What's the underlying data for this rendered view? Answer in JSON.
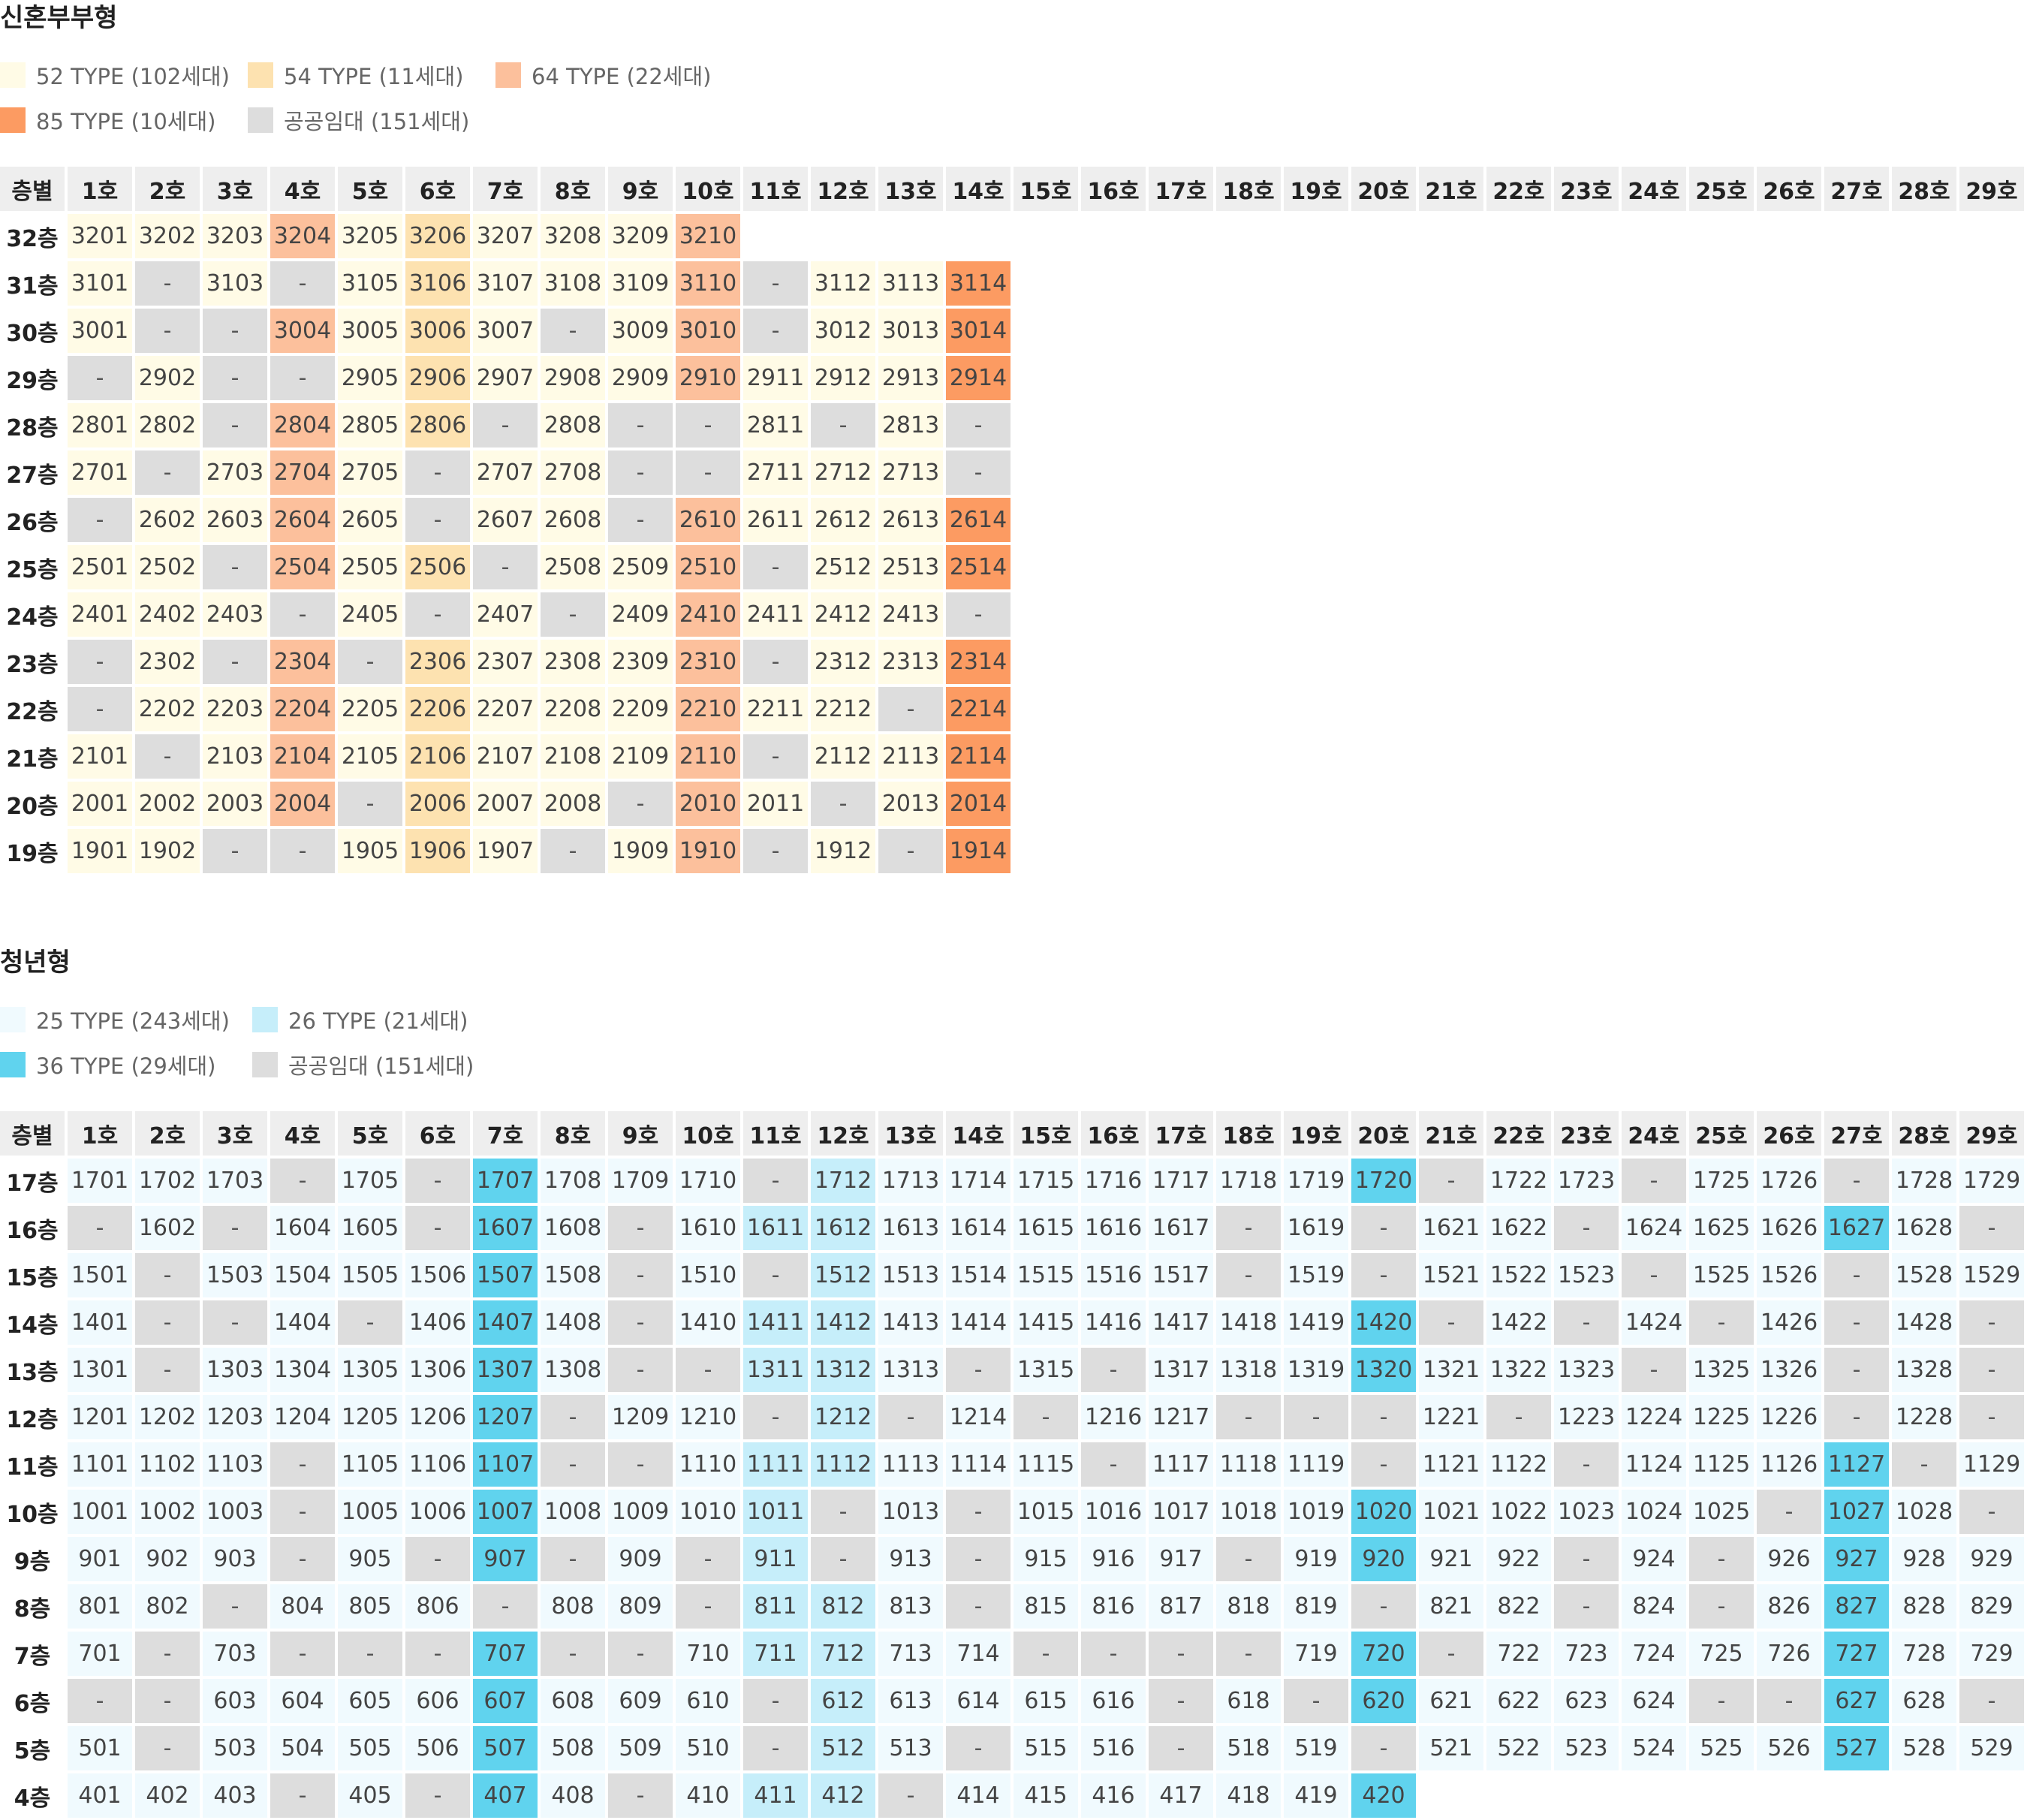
{
  "colors": {
    "nh52": "#fffbe6",
    "nh54": "#fde2b0",
    "nh64": "#fcc09c",
    "nh85": "#fc9b62",
    "public": "#dddddd",
    "y25": "#f0fafe",
    "y26": "#c6eefa",
    "y36": "#60d3ee",
    "header_bg": "#eeeeee",
    "text": "#333333"
  },
  "sections": [
    {
      "title": "신혼부부형",
      "legend": [
        {
          "color": "nh52",
          "label": "52 TYPE (102세대)"
        },
        {
          "color": "nh54",
          "label": "54 TYPE (11세대)"
        },
        {
          "color": "nh64",
          "label": "64 TYPE (22세대)"
        },
        {
          "color": "nh85",
          "label": "85 TYPE (10세대)"
        },
        {
          "color": "public",
          "label": "공공임대 (151세대)"
        }
      ],
      "header": [
        "층별",
        "1호",
        "2호",
        "3호",
        "4호",
        "5호",
        "6호",
        "7호",
        "8호",
        "9호",
        "10호",
        "11호",
        "12호",
        "13호",
        "14호",
        "15호",
        "16호",
        "17호",
        "18호",
        "19호",
        "20호",
        "21호",
        "22호",
        "23호",
        "24호",
        "25호",
        "26호",
        "27호",
        "28호",
        "29호"
      ],
      "rows": [
        {
          "floor": "32층",
          "units": [
            "3201",
            "3202",
            "3203",
            "3204",
            "3205",
            "3206",
            "3207",
            "3208",
            "3209",
            "3210"
          ]
        },
        {
          "floor": "31층",
          "units": [
            "3101",
            "-",
            "3103",
            "-",
            "3105",
            "3106",
            "3107",
            "3108",
            "3109",
            "3110",
            "-",
            "3112",
            "3113",
            "3114"
          ]
        },
        {
          "floor": "30층",
          "units": [
            "3001",
            "-",
            "-",
            "3004",
            "3005",
            "3006",
            "3007",
            "-",
            "3009",
            "3010",
            "-",
            "3012",
            "3013",
            "3014"
          ]
        },
        {
          "floor": "29층",
          "units": [
            "-",
            "2902",
            "-",
            "-",
            "2905",
            "2906",
            "2907",
            "2908",
            "2909",
            "2910",
            "2911",
            "2912",
            "2913",
            "2914"
          ]
        },
        {
          "floor": "28층",
          "units": [
            "2801",
            "2802",
            "-",
            "2804",
            "2805",
            "2806",
            "-",
            "2808",
            "-",
            "-",
            "2811",
            "-",
            "2813",
            "-"
          ]
        },
        {
          "floor": "27층",
          "units": [
            "2701",
            "-",
            "2703",
            "2704",
            "2705",
            "-",
            "2707",
            "2708",
            "-",
            "-",
            "2711",
            "2712",
            "2713",
            "-"
          ]
        },
        {
          "floor": "26층",
          "units": [
            "-",
            "2602",
            "2603",
            "2604",
            "2605",
            "-",
            "2607",
            "2608",
            "-",
            "2610",
            "2611",
            "2612",
            "2613",
            "2614"
          ]
        },
        {
          "floor": "25층",
          "units": [
            "2501",
            "2502",
            "-",
            "2504",
            "2505",
            "2506",
            "-",
            "2508",
            "2509",
            "2510",
            "-",
            "2512",
            "2513",
            "2514"
          ]
        },
        {
          "floor": "24층",
          "units": [
            "2401",
            "2402",
            "2403",
            "-",
            "2405",
            "-",
            "2407",
            "-",
            "2409",
            "2410",
            "2411",
            "2412",
            "2413",
            "-"
          ]
        },
        {
          "floor": "23층",
          "units": [
            "-",
            "2302",
            "-",
            "2304",
            "-",
            "2306",
            "2307",
            "2308",
            "2309",
            "2310",
            "-",
            "2312",
            "2313",
            "2314"
          ]
        },
        {
          "floor": "22층",
          "units": [
            "-",
            "2202",
            "2203",
            "2204",
            "2205",
            "2206",
            "2207",
            "2208",
            "2209",
            "2210",
            "2211",
            "2212",
            "-",
            "2214"
          ]
        },
        {
          "floor": "21층",
          "units": [
            "2101",
            "-",
            "2103",
            "2104",
            "2105",
            "2106",
            "2107",
            "2108",
            "2109",
            "2110",
            "-",
            "2112",
            "2113",
            "2114"
          ]
        },
        {
          "floor": "20층",
          "units": [
            "2001",
            "2002",
            "2003",
            "2004",
            "-",
            "2006",
            "2007",
            "2008",
            "-",
            "2010",
            "2011",
            "-",
            "2013",
            "2014"
          ]
        },
        {
          "floor": "19층",
          "units": [
            "1901",
            "1902",
            "-",
            "-",
            "1905",
            "1906",
            "1907",
            "-",
            "1909",
            "1910",
            "-",
            "1912",
            "-",
            "1914"
          ]
        }
      ],
      "column_types": [
        "nh52",
        "nh52",
        "nh52",
        "nh64",
        "nh52",
        "nh54",
        "nh52",
        "nh52",
        "nh52",
        "nh64",
        "nh52",
        "nh52",
        "nh52",
        "nh85"
      ]
    },
    {
      "title": "청년형",
      "legend": [
        {
          "color": "y25",
          "label": "25 TYPE (243세대)"
        },
        {
          "color": "y26",
          "label": "26 TYPE (21세대)"
        },
        {
          "color": "y36",
          "label": "36 TYPE (29세대)"
        },
        {
          "color": "public",
          "label": "공공임대 (151세대)"
        }
      ],
      "header": [
        "층별",
        "1호",
        "2호",
        "3호",
        "4호",
        "5호",
        "6호",
        "7호",
        "8호",
        "9호",
        "10호",
        "11호",
        "12호",
        "13호",
        "14호",
        "15호",
        "16호",
        "17호",
        "18호",
        "19호",
        "20호",
        "21호",
        "22호",
        "23호",
        "24호",
        "25호",
        "26호",
        "27호",
        "28호",
        "29호"
      ],
      "rows": [
        {
          "floor": "17층",
          "units": [
            "1701",
            "1702",
            "1703",
            "-",
            "1705",
            "-",
            "1707",
            "1708",
            "1709",
            "1710",
            "-",
            "1712",
            "1713",
            "1714",
            "1715",
            "1716",
            "1717",
            "1718",
            "1719",
            "1720",
            "-",
            "1722",
            "1723",
            "-",
            "1725",
            "1726",
            "-",
            "1728",
            "1729"
          ]
        },
        {
          "floor": "16층",
          "units": [
            "-",
            "1602",
            "-",
            "1604",
            "1605",
            "-",
            "1607",
            "1608",
            "-",
            "1610",
            "1611",
            "1612",
            "1613",
            "1614",
            "1615",
            "1616",
            "1617",
            "-",
            "1619",
            "-",
            "1621",
            "1622",
            "-",
            "1624",
            "1625",
            "1626",
            "1627",
            "1628",
            "-"
          ]
        },
        {
          "floor": "15층",
          "units": [
            "1501",
            "-",
            "1503",
            "1504",
            "1505",
            "1506",
            "1507",
            "1508",
            "-",
            "1510",
            "-",
            "1512",
            "1513",
            "1514",
            "1515",
            "1516",
            "1517",
            "-",
            "1519",
            "-",
            "1521",
            "1522",
            "1523",
            "-",
            "1525",
            "1526",
            "-",
            "1528",
            "1529"
          ]
        },
        {
          "floor": "14층",
          "units": [
            "1401",
            "-",
            "-",
            "1404",
            "-",
            "1406",
            "1407",
            "1408",
            "-",
            "1410",
            "1411",
            "1412",
            "1413",
            "1414",
            "1415",
            "1416",
            "1417",
            "1418",
            "1419",
            "1420",
            "-",
            "1422",
            "-",
            "1424",
            "-",
            "1426",
            "-",
            "1428",
            "-"
          ]
        },
        {
          "floor": "13층",
          "units": [
            "1301",
            "-",
            "1303",
            "1304",
            "1305",
            "1306",
            "1307",
            "1308",
            "-",
            "-",
            "1311",
            "1312",
            "1313",
            "-",
            "1315",
            "-",
            "1317",
            "1318",
            "1319",
            "1320",
            "1321",
            "1322",
            "1323",
            "-",
            "1325",
            "1326",
            "-",
            "1328",
            "-"
          ]
        },
        {
          "floor": "12층",
          "units": [
            "1201",
            "1202",
            "1203",
            "1204",
            "1205",
            "1206",
            "1207",
            "-",
            "1209",
            "1210",
            "-",
            "1212",
            "-",
            "1214",
            "-",
            "1216",
            "1217",
            "-",
            "-",
            "-",
            "1221",
            "-",
            "1223",
            "1224",
            "1225",
            "1226",
            "-",
            "1228",
            "-"
          ]
        },
        {
          "floor": "11층",
          "units": [
            "1101",
            "1102",
            "1103",
            "-",
            "1105",
            "1106",
            "1107",
            "-",
            "-",
            "1110",
            "1111",
            "1112",
            "1113",
            "1114",
            "1115",
            "-",
            "1117",
            "1118",
            "1119",
            "-",
            "1121",
            "1122",
            "-",
            "1124",
            "1125",
            "1126",
            "1127",
            "-",
            "1129"
          ]
        },
        {
          "floor": "10층",
          "units": [
            "1001",
            "1002",
            "1003",
            "-",
            "1005",
            "1006",
            "1007",
            "1008",
            "1009",
            "1010",
            "1011",
            "-",
            "1013",
            "-",
            "1015",
            "1016",
            "1017",
            "1018",
            "1019",
            "1020",
            "1021",
            "1022",
            "1023",
            "1024",
            "1025",
            "-",
            "1027",
            "1028",
            "-"
          ]
        },
        {
          "floor": "9층",
          "units": [
            "901",
            "902",
            "903",
            "-",
            "905",
            "-",
            "907",
            "-",
            "909",
            "-",
            "911",
            "-",
            "913",
            "-",
            "915",
            "916",
            "917",
            "-",
            "919",
            "920",
            "921",
            "922",
            "-",
            "924",
            "-",
            "926",
            "927",
            "928",
            "929"
          ]
        },
        {
          "floor": "8층",
          "units": [
            "801",
            "802",
            "-",
            "804",
            "805",
            "806",
            "-",
            "808",
            "809",
            "-",
            "811",
            "812",
            "813",
            "-",
            "815",
            "816",
            "817",
            "818",
            "819",
            "-",
            "821",
            "822",
            "-",
            "824",
            "-",
            "826",
            "827",
            "828",
            "829"
          ]
        },
        {
          "floor": "7층",
          "units": [
            "701",
            "-",
            "703",
            "-",
            "-",
            "-",
            "707",
            "-",
            "-",
            "710",
            "711",
            "712",
            "713",
            "714",
            "-",
            "-",
            "-",
            "-",
            "719",
            "720",
            "-",
            "722",
            "723",
            "724",
            "725",
            "726",
            "727",
            "728",
            "729"
          ]
        },
        {
          "floor": "6층",
          "units": [
            "-",
            "-",
            "603",
            "604",
            "605",
            "606",
            "607",
            "608",
            "609",
            "610",
            "-",
            "612",
            "613",
            "614",
            "615",
            "616",
            "-",
            "618",
            "-",
            "620",
            "621",
            "622",
            "623",
            "624",
            "-",
            "-",
            "627",
            "628",
            "-"
          ]
        },
        {
          "floor": "5층",
          "units": [
            "501",
            "-",
            "503",
            "504",
            "505",
            "506",
            "507",
            "508",
            "509",
            "510",
            "-",
            "512",
            "513",
            "-",
            "515",
            "516",
            "-",
            "518",
            "519",
            "-",
            "521",
            "522",
            "523",
            "524",
            "525",
            "526",
            "527",
            "528",
            "529"
          ]
        },
        {
          "floor": "4층",
          "units": [
            "401",
            "402",
            "403",
            "-",
            "405",
            "-",
            "407",
            "408",
            "-",
            "410",
            "411",
            "412",
            "-",
            "414",
            "415",
            "416",
            "417",
            "418",
            "419",
            "420"
          ]
        }
      ],
      "column_types": [
        "y25",
        "y25",
        "y25",
        "y25",
        "y25",
        "y25",
        "y36",
        "y25",
        "y25",
        "y25",
        "y26",
        "y26",
        "y25",
        "y25",
        "y25",
        "y25",
        "y25",
        "y25",
        "y25",
        "y36",
        "y25",
        "y25",
        "y25",
        "y25",
        "y25",
        "y25",
        "y36",
        "y25",
        "y25"
      ]
    }
  ]
}
